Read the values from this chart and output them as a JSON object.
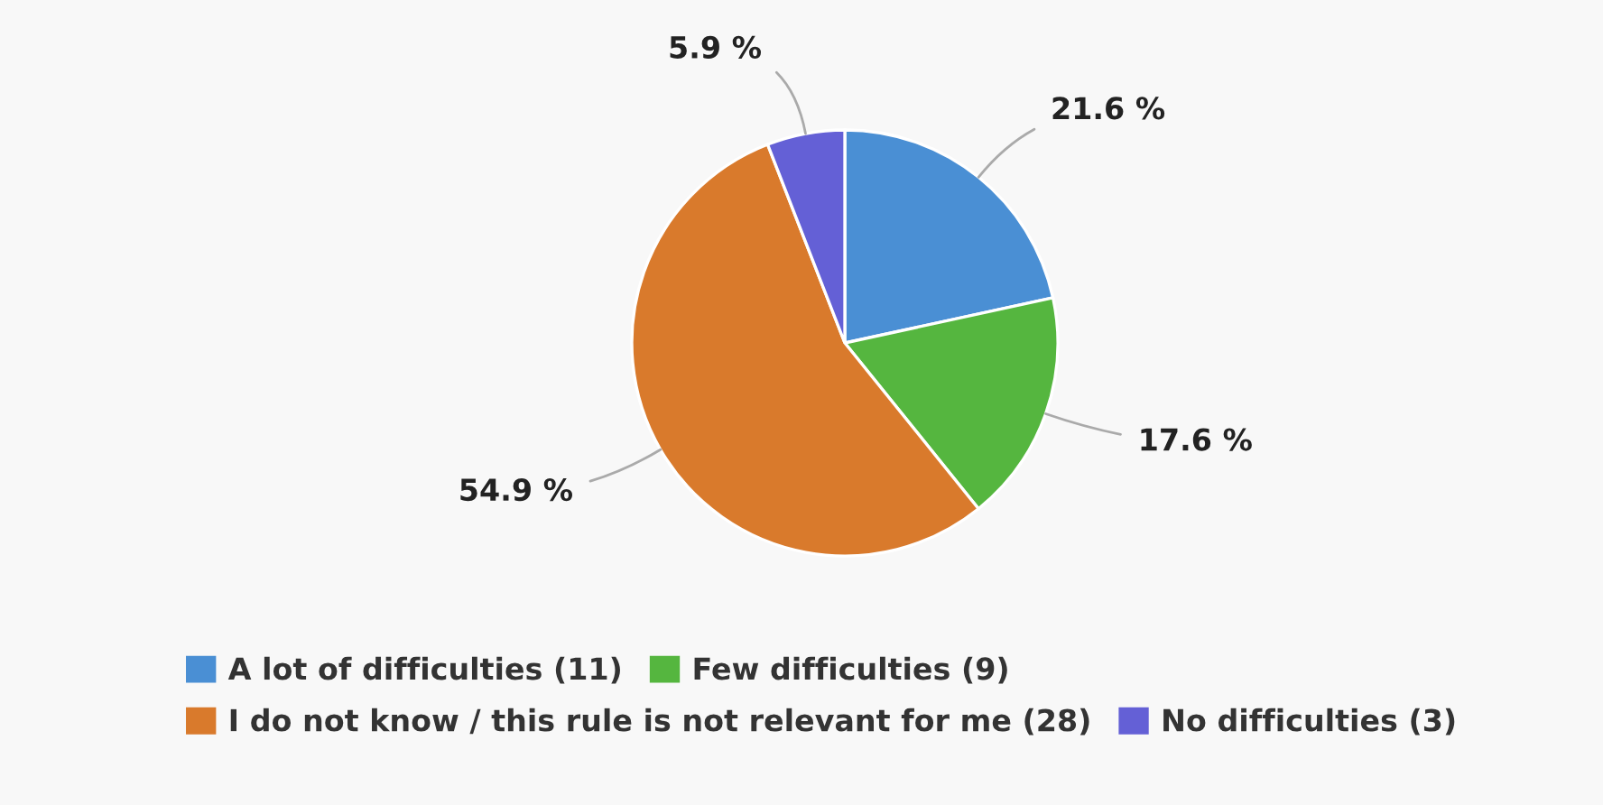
{
  "chart_data": {
    "type": "pie",
    "categories": [
      "A lot of difficulties (11)",
      "Few difficulties (9)",
      "I do not know / this rule is not relevant for me (28)",
      "No difficulties (3)"
    ],
    "values": [
      21.6,
      17.6,
      54.9,
      5.9
    ],
    "colors": [
      "#4a8fd4",
      "#55b63f",
      "#d97a2c",
      "#6460d6"
    ],
    "value_labels": [
      "21.6 %",
      "17.6 %",
      "54.9 %",
      "5.9 %"
    ],
    "legend": "bottom"
  }
}
